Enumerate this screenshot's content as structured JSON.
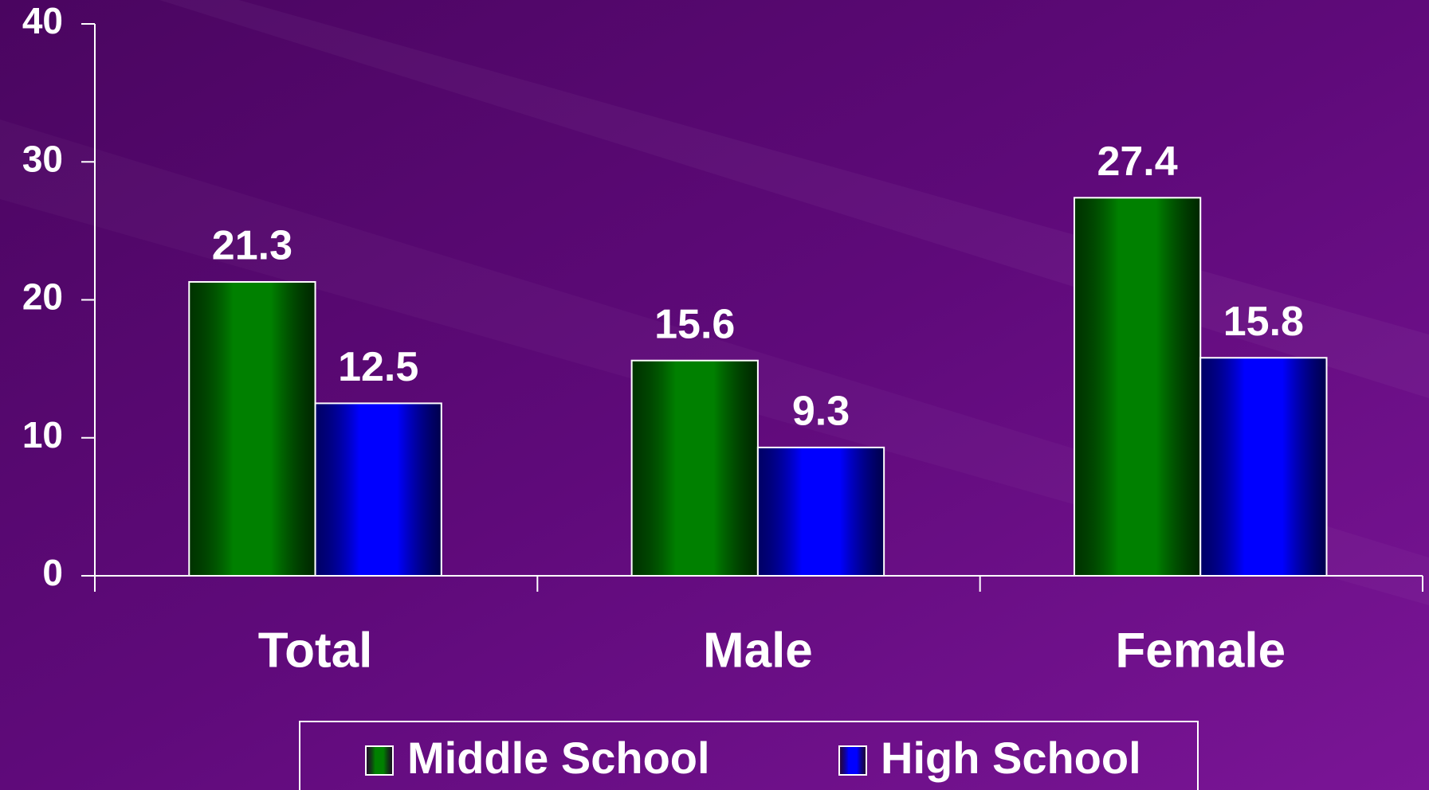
{
  "chart_data": {
    "type": "bar",
    "categories": [
      "Total",
      "Male",
      "Female"
    ],
    "series": [
      {
        "name": "Middle School",
        "color": "#008000",
        "values": [
          21.3,
          15.6,
          27.4
        ]
      },
      {
        "name": "High School",
        "color": "#0000ff",
        "values": [
          12.5,
          9.3,
          15.8
        ]
      }
    ],
    "ylim": [
      0,
      40
    ],
    "yticks": [
      0,
      10,
      20,
      30,
      40
    ],
    "grid": false,
    "legend": "bottom"
  }
}
